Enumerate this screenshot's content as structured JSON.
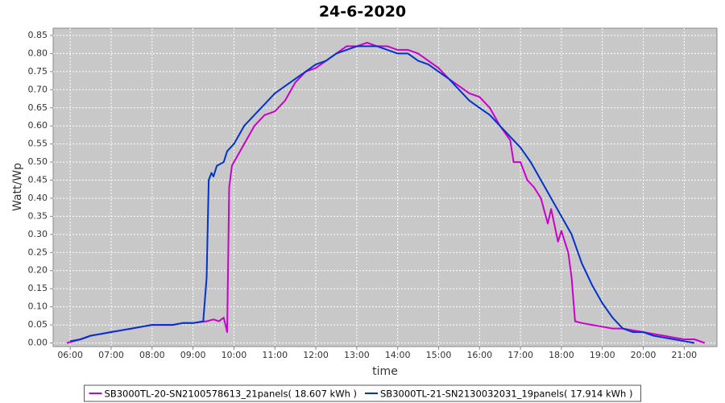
{
  "chart_data": {
    "type": "line",
    "title": "24-6-2020",
    "x_label": "time",
    "y_label": "Watt/Wp",
    "xlim": [
      "05:35",
      "21:48"
    ],
    "ylim": [
      -0.01,
      0.87
    ],
    "xticks": [
      "06:00",
      "07:00",
      "08:00",
      "09:00",
      "10:00",
      "11:00",
      "12:00",
      "13:00",
      "14:00",
      "15:00",
      "16:00",
      "17:00",
      "18:00",
      "19:00",
      "20:00",
      "21:00"
    ],
    "yticks": [
      {
        "value": 0,
        "label": "0.00"
      },
      0.05,
      {
        "value": 0.1,
        "label": "0.10"
      },
      0.15,
      {
        "value": 0.2,
        "label": "0.20"
      },
      0.25,
      {
        "value": 0.3,
        "label": "0.30"
      },
      0.35,
      {
        "value": 0.4,
        "label": "0.40"
      },
      0.45,
      {
        "value": 0.5,
        "label": "0.50"
      },
      0.55,
      {
        "value": 0.6,
        "label": "0.60"
      },
      0.65,
      {
        "value": 0.7,
        "label": "0.70"
      },
      0.75,
      {
        "value": 0.8,
        "label": "0.80"
      },
      0.85
    ],
    "grid": true,
    "legend": "bottom",
    "series": [
      {
        "name": "SB3000TL-20-SN2100578613_21panels( 18.607 kWh )",
        "color": "#cc00cc",
        "x": [
          "05:55",
          "06:15",
          "06:30",
          "06:45",
          "07:00",
          "07:15",
          "07:30",
          "07:45",
          "08:00",
          "08:15",
          "08:30",
          "08:45",
          "09:00",
          "09:20",
          "09:30",
          "09:38",
          "09:45",
          "09:50",
          "09:53",
          "09:57",
          "10:00",
          "10:15",
          "10:30",
          "10:45",
          "11:00",
          "11:15",
          "11:30",
          "11:45",
          "12:00",
          "12:15",
          "12:30",
          "12:45",
          "13:00",
          "13:15",
          "13:30",
          "13:45",
          "14:00",
          "14:15",
          "14:30",
          "14:45",
          "15:00",
          "15:15",
          "15:30",
          "15:45",
          "16:00",
          "16:15",
          "16:30",
          "16:45",
          "16:50",
          "17:00",
          "17:10",
          "17:20",
          "17:30",
          "17:40",
          "17:45",
          "17:55",
          "18:00",
          "18:10",
          "18:15",
          "18:20",
          "18:30",
          "18:45",
          "19:00",
          "19:15",
          "19:30",
          "19:45",
          "20:00",
          "20:15",
          "20:30",
          "20:45",
          "21:00",
          "21:15",
          "21:30"
        ],
        "values": [
          0.0,
          0.01,
          0.02,
          0.025,
          0.03,
          0.035,
          0.04,
          0.045,
          0.05,
          0.05,
          0.05,
          0.055,
          0.055,
          0.06,
          0.065,
          0.06,
          0.07,
          0.03,
          0.43,
          0.49,
          0.5,
          0.55,
          0.6,
          0.63,
          0.64,
          0.67,
          0.72,
          0.75,
          0.76,
          0.78,
          0.8,
          0.82,
          0.82,
          0.83,
          0.82,
          0.82,
          0.81,
          0.81,
          0.8,
          0.78,
          0.76,
          0.73,
          0.71,
          0.69,
          0.68,
          0.65,
          0.6,
          0.56,
          0.5,
          0.5,
          0.45,
          0.43,
          0.4,
          0.33,
          0.37,
          0.28,
          0.31,
          0.25,
          0.18,
          0.06,
          0.055,
          0.05,
          0.045,
          0.04,
          0.04,
          0.035,
          0.03,
          0.025,
          0.02,
          0.015,
          0.01,
          0.01,
          0.0
        ]
      },
      {
        "name": "SB3000TL-21-SN2130032031_19panels( 17.914 kWh )",
        "color": "#0033cc",
        "x": [
          "06:00",
          "06:15",
          "06:30",
          "06:45",
          "07:00",
          "07:15",
          "07:30",
          "07:45",
          "08:00",
          "08:15",
          "08:30",
          "08:45",
          "09:00",
          "09:15",
          "09:20",
          "09:23",
          "09:27",
          "09:30",
          "09:35",
          "09:45",
          "09:50",
          "10:00",
          "10:15",
          "10:30",
          "10:45",
          "11:00",
          "11:15",
          "11:30",
          "11:45",
          "12:00",
          "12:15",
          "12:30",
          "12:45",
          "13:00",
          "13:15",
          "13:30",
          "13:45",
          "14:00",
          "14:15",
          "14:30",
          "14:45",
          "15:00",
          "15:15",
          "15:30",
          "15:45",
          "16:00",
          "16:15",
          "16:30",
          "16:45",
          "17:00",
          "17:15",
          "17:30",
          "17:45",
          "18:00",
          "18:15",
          "18:30",
          "18:45",
          "19:00",
          "19:15",
          "19:30",
          "19:45",
          "20:00",
          "20:15",
          "20:30",
          "20:45",
          "21:00",
          "21:15"
        ],
        "values": [
          0.005,
          0.01,
          0.02,
          0.025,
          0.03,
          0.035,
          0.04,
          0.045,
          0.05,
          0.05,
          0.05,
          0.055,
          0.055,
          0.06,
          0.18,
          0.45,
          0.47,
          0.46,
          0.49,
          0.5,
          0.53,
          0.55,
          0.6,
          0.63,
          0.66,
          0.69,
          0.71,
          0.73,
          0.75,
          0.77,
          0.78,
          0.8,
          0.81,
          0.82,
          0.82,
          0.82,
          0.81,
          0.8,
          0.8,
          0.78,
          0.77,
          0.75,
          0.73,
          0.7,
          0.67,
          0.65,
          0.63,
          0.6,
          0.57,
          0.54,
          0.5,
          0.45,
          0.4,
          0.35,
          0.3,
          0.22,
          0.16,
          0.11,
          0.07,
          0.04,
          0.03,
          0.03,
          0.02,
          0.015,
          0.01,
          0.005,
          0.0
        ]
      }
    ]
  }
}
